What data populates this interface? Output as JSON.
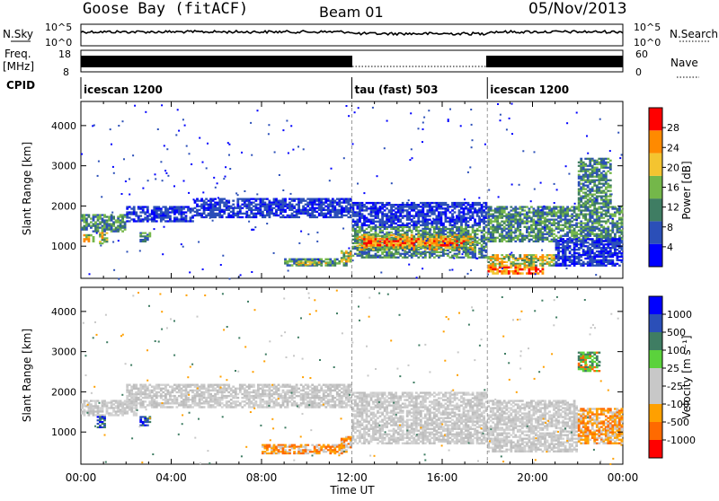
{
  "header": {
    "station": "Goose Bay (fitACF)",
    "beam": "Beam 01",
    "date": "05/Nov/2013"
  },
  "top_panels": {
    "nsky_label": "N.Sky",
    "nsky_ticks": [
      "10^5",
      "10^0"
    ],
    "nsearch_label": "N.Search",
    "nsearch_ticks": [
      "10^5",
      "10^0"
    ],
    "freq_label": "Freq.",
    "freq_unit": "[MHz]",
    "freq_ticks": [
      "18",
      "8"
    ],
    "nave_label": "Nave",
    "nave_ticks": [
      "60",
      "0"
    ],
    "cpid_label": "CPID",
    "cpid_segments": [
      {
        "label": "icescan 1200",
        "start_hour": 0,
        "end_hour": 12
      },
      {
        "label": "tau (fast) 503",
        "start_hour": 12,
        "end_hour": 18
      },
      {
        "label": "icescan 1200",
        "start_hour": 18,
        "end_hour": 24
      }
    ]
  },
  "chart_data": [
    {
      "type": "heatmap",
      "name": "power",
      "ylabel": "Slant Range [km]",
      "yticks": [
        1000,
        2000,
        3000,
        4000
      ],
      "ylim": [
        200,
        4600
      ],
      "xlim": [
        0,
        24
      ],
      "colorbar": {
        "label": "Power [dB]",
        "ticks": [
          "28",
          "24",
          "20",
          "16",
          "12",
          "8",
          "4"
        ],
        "colors": [
          "#0000ff",
          "#2b4fb8",
          "#3f7d63",
          "#74b74a",
          "#f4c430",
          "#ff8a00",
          "#ff0000"
        ]
      },
      "regions": [
        {
          "t0": 0.0,
          "t1": 2.0,
          "r0": 1350,
          "r1": 1800,
          "level": "mid"
        },
        {
          "t0": 0.1,
          "t1": 0.6,
          "r0": 1100,
          "r1": 1300,
          "level": "high"
        },
        {
          "t0": 0.8,
          "t1": 1.2,
          "r0": 1050,
          "r1": 1350,
          "level": "high"
        },
        {
          "t0": 2.0,
          "t1": 5.0,
          "r0": 1600,
          "r1": 2000,
          "level": "low"
        },
        {
          "t0": 2.6,
          "t1": 3.1,
          "r0": 1100,
          "r1": 1350,
          "level": "mid"
        },
        {
          "t0": 5.0,
          "t1": 12.0,
          "r0": 1700,
          "r1": 2200,
          "level": "low"
        },
        {
          "t0": 9.0,
          "t1": 11.8,
          "r0": 500,
          "r1": 700,
          "level": "mid"
        },
        {
          "t0": 9.5,
          "t1": 11.0,
          "r0": 530,
          "r1": 620,
          "level": "high"
        },
        {
          "t0": 11.5,
          "t1": 12.0,
          "r0": 600,
          "r1": 900,
          "level": "high"
        },
        {
          "t0": 12.0,
          "t1": 18.0,
          "r0": 1500,
          "r1": 2100,
          "level": "low"
        },
        {
          "t0": 12.0,
          "t1": 18.0,
          "r0": 700,
          "r1": 1500,
          "level": "mid"
        },
        {
          "t0": 12.2,
          "t1": 17.5,
          "r0": 900,
          "r1": 1300,
          "level": "high"
        },
        {
          "t0": 12.5,
          "t1": 17.0,
          "r0": 1000,
          "r1": 1200,
          "level": "top"
        },
        {
          "t0": 18.0,
          "t1": 24.0,
          "r0": 1100,
          "r1": 2000,
          "level": "mid"
        },
        {
          "t0": 18.0,
          "t1": 20.5,
          "r0": 300,
          "r1": 500,
          "level": "top"
        },
        {
          "t0": 18.0,
          "t1": 21.0,
          "r0": 500,
          "r1": 800,
          "level": "high"
        },
        {
          "t0": 21.0,
          "t1": 24.0,
          "r0": 500,
          "r1": 1200,
          "level": "low"
        },
        {
          "t0": 22.0,
          "t1": 23.5,
          "r0": 2000,
          "r1": 3200,
          "level": "mid"
        }
      ]
    },
    {
      "type": "heatmap",
      "name": "velocity",
      "ylabel": "Slant Range [km]",
      "xlabel": "Time UT",
      "xticks": [
        "00:00",
        "04:00",
        "08:00",
        "12:00",
        "16:00",
        "20:00",
        "00:00"
      ],
      "yticks": [
        1000,
        2000,
        3000,
        4000
      ],
      "ylim": [
        200,
        4600
      ],
      "xlim": [
        0,
        24
      ],
      "colorbar": {
        "label": "Velocity [m s⁻¹]",
        "ticks": [
          "1000",
          "500",
          "100",
          "25",
          "-25",
          "-100",
          "-500",
          "-1000"
        ],
        "colors": [
          "#ff0000",
          "#ff6a00",
          "#ffa000",
          "#c8c8c8",
          "#c8c8c8",
          "#5bd23c",
          "#3f7d63",
          "#2b4fb8",
          "#0000ff"
        ]
      },
      "regions": [
        {
          "t0": 0.0,
          "t1": 2.5,
          "r0": 1400,
          "r1": 1800,
          "level": "grey"
        },
        {
          "t0": 0.7,
          "t1": 1.1,
          "r0": 1100,
          "r1": 1400,
          "level": "blue"
        },
        {
          "t0": 2.6,
          "t1": 3.1,
          "r0": 1150,
          "r1": 1400,
          "level": "blue"
        },
        {
          "t0": 2.0,
          "t1": 12.0,
          "r0": 1600,
          "r1": 2200,
          "level": "grey"
        },
        {
          "t0": 8.0,
          "t1": 11.8,
          "r0": 450,
          "r1": 700,
          "level": "orange"
        },
        {
          "t0": 11.5,
          "t1": 12.0,
          "r0": 600,
          "r1": 900,
          "level": "orange"
        },
        {
          "t0": 12.0,
          "t1": 18.0,
          "r0": 700,
          "r1": 2000,
          "level": "grey"
        },
        {
          "t0": 18.0,
          "t1": 22.0,
          "r0": 500,
          "r1": 1800,
          "level": "grey"
        },
        {
          "t0": 22.0,
          "t1": 24.0,
          "r0": 700,
          "r1": 1600,
          "level": "orange"
        },
        {
          "t0": 22.0,
          "t1": 23.0,
          "r0": 2500,
          "r1": 3000,
          "level": "green"
        }
      ]
    }
  ]
}
